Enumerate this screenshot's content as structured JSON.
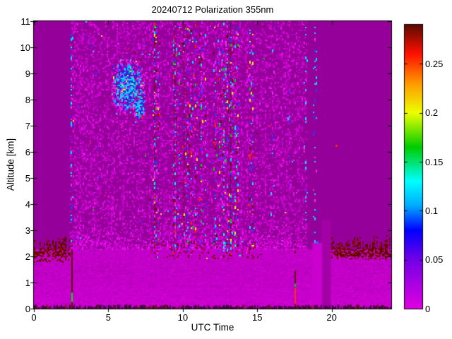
{
  "figure": {
    "title": "20240712 Polarization 355nm",
    "background_color": "#ffffff"
  },
  "chart_data": {
    "type": "heatmap",
    "title": "20240712 Polarization 355nm",
    "xlabel": "UTC Time",
    "ylabel": "Altitude [km]",
    "xlim": [
      0,
      24
    ],
    "ylim": [
      0,
      11
    ],
    "xticks": [
      0,
      5,
      10,
      15,
      20
    ],
    "yticks": [
      0,
      1,
      2,
      3,
      4,
      5,
      6,
      7,
      8,
      9,
      10,
      11
    ],
    "grid": false,
    "legend": "none",
    "colorbar": {
      "position": "right",
      "vmin": 0,
      "vmax": 0.29,
      "ticks": [
        0,
        0.05,
        0.1,
        0.15,
        0.2,
        0.25
      ],
      "colormap_stops": [
        [
          0,
          "#e000e0"
        ],
        [
          0.05,
          "#7300e6"
        ],
        [
          0.08,
          "#0000ff"
        ],
        [
          0.105,
          "#00aaff"
        ],
        [
          0.13,
          "#00ffff"
        ],
        [
          0.165,
          "#00cc00"
        ],
        [
          0.2,
          "#eeff00"
        ],
        [
          0.23,
          "#ff9900"
        ],
        [
          0.26,
          "#ff1100"
        ],
        [
          0.29,
          "#5c0a00"
        ]
      ]
    },
    "render_seed": 12,
    "features": {
      "background": {
        "value": 0.01,
        "color": "#95009a"
      },
      "boundary_layer_band": {
        "utc": [
          0,
          24
        ],
        "alt": [
          0,
          2.27
        ],
        "value": 0.004,
        "color": "#c300c7",
        "bottom_glow_color": "#e000e4"
      },
      "surface_strip": {
        "alt": [
          0,
          0.14
        ],
        "palette": [
          [
            "#500050",
            3
          ],
          [
            "#3c003c",
            2
          ],
          [
            "#6b1030",
            1
          ],
          [
            "#702010",
            0.6
          ],
          [
            "#aa00aa",
            1.5
          ]
        ]
      },
      "noise_field": {
        "utc": [
          2.42,
          18.35
        ],
        "alt": [
          2.27,
          11
        ],
        "density": 0.23,
        "palette": [
          [
            "#c400c8",
            3
          ],
          [
            "#d800dc",
            2
          ],
          [
            "#ea10ee",
            1
          ]
        ],
        "colored_fraction": 0.004
      },
      "band_top_fade": {
        "utc": [
          2.45,
          18.35
        ],
        "alt": [
          2.27,
          3.6
        ],
        "max_density": 0.5,
        "palette": [
          [
            "#d400d8",
            2
          ],
          [
            "#e600ea",
            2
          ],
          [
            "#f020f4",
            1
          ]
        ]
      },
      "depol_fringe_left": {
        "utc": [
          0,
          2.45
        ],
        "alt": [
          1.8,
          2.72
        ],
        "value": 0.29,
        "palette": [
          [
            "#5f0000",
            3
          ],
          [
            "#7a0e00",
            2
          ],
          [
            "#8b1500",
            1
          ]
        ]
      },
      "depol_fringe_right": {
        "utc": [
          19.95,
          24
        ],
        "alt": [
          1.9,
          2.78
        ],
        "value": 0.29
      },
      "depol_fringe_mid": {
        "utc": [
          7.8,
          15.2
        ],
        "alt": [
          1.92,
          2.6
        ],
        "density": 0.1,
        "value": 0.29
      },
      "cloud_blob": {
        "utc": [
          5.2,
          7.45
        ],
        "alt": [
          7.35,
          9.55
        ],
        "center_utc": 6.25,
        "center_alt": 8.55,
        "value_range": [
          0.05,
          0.12
        ],
        "palette": [
          [
            "#1a30e8",
            3
          ],
          [
            "#00aaff",
            2.5
          ],
          [
            "#00e8ff",
            2
          ],
          [
            "#e830ec",
            1.5
          ],
          [
            "#5500dd",
            1
          ],
          [
            "#00ffc8",
            0.5
          ],
          [
            "#ffee00",
            0.2
          ],
          [
            "#ff2200",
            0.2
          ]
        ]
      },
      "column_palettes": {
        "multi": [
          [
            "#e830ec",
            3
          ],
          [
            "#2040ff",
            2
          ],
          [
            "#00e0ff",
            1.5
          ],
          [
            "#6b0000",
            1.2
          ],
          [
            "#ff2200",
            0.8
          ],
          [
            "#ffee00",
            0.7
          ],
          [
            "#00cc00",
            0.5
          ],
          [
            "#00ffc8",
            0.3
          ]
        ],
        "blue": [
          [
            "#2040ff",
            3.5
          ],
          [
            "#00e0ff",
            3
          ],
          [
            "#e830ec",
            2
          ],
          [
            "#00ffc8",
            1
          ],
          [
            "#00cc00",
            0.5
          ]
        ],
        "cyan": [
          [
            "#00e0ff",
            6
          ],
          [
            "#2040ff",
            2
          ],
          [
            "#e830ec",
            2
          ]
        ]
      },
      "noise_columns": [
        {
          "t": 2.47,
          "a0": 2.55,
          "a1": 10.95,
          "p": 0.32,
          "pal": "blue"
        },
        {
          "t": 8.05,
          "a0": 2.3,
          "a1": 10.95,
          "p": 0.5,
          "pal": "multi",
          "dark": true
        },
        {
          "t": 8.3,
          "a0": 2.4,
          "a1": 10.9,
          "p": 0.25,
          "pal": "multi"
        },
        {
          "t": 9.45,
          "a0": 2.1,
          "a1": 10.95,
          "p": 0.45,
          "pal": "multi",
          "dark": true
        },
        {
          "t": 9.7,
          "a0": 2.2,
          "a1": 10.9,
          "p": 0.28,
          "pal": "multi"
        },
        {
          "t": 10.05,
          "a0": 2.3,
          "a1": 10.9,
          "p": 0.2,
          "pal": "multi",
          "dark": true
        },
        {
          "t": 10.3,
          "a0": 2.2,
          "a1": 10.9,
          "p": 0.32,
          "pal": "multi"
        },
        {
          "t": 10.55,
          "a0": 2.3,
          "a1": 10.9,
          "p": 0.28,
          "pal": "multi"
        },
        {
          "t": 10.8,
          "a0": 2.3,
          "a1": 10.9,
          "p": 0.22,
          "pal": "multi"
        },
        {
          "t": 11.2,
          "a0": 2.4,
          "a1": 10.9,
          "p": 0.28,
          "pal": "multi"
        },
        {
          "t": 11.5,
          "a0": 2.5,
          "a1": 10.9,
          "p": 0.18,
          "pal": "multi"
        },
        {
          "t": 12.15,
          "a0": 2.3,
          "a1": 10.9,
          "p": 0.28,
          "pal": "multi"
        },
        {
          "t": 12.45,
          "a0": 2.3,
          "a1": 10.9,
          "p": 0.22,
          "pal": "multi"
        },
        {
          "t": 12.7,
          "a0": 2.2,
          "a1": 10.95,
          "p": 0.42,
          "pal": "multi"
        },
        {
          "t": 12.95,
          "a0": 2.2,
          "a1": 10.95,
          "p": 0.38,
          "pal": "multi"
        },
        {
          "t": 13.2,
          "a0": 2.2,
          "a1": 10.95,
          "p": 0.34,
          "pal": "multi",
          "dark": true
        },
        {
          "t": 13.45,
          "a0": 2.3,
          "a1": 10.9,
          "p": 0.28,
          "pal": "multi"
        },
        {
          "t": 13.65,
          "a0": 2.4,
          "a1": 10.9,
          "p": 0.22,
          "pal": "multi"
        },
        {
          "t": 14.45,
          "a0": 2.2,
          "a1": 10.9,
          "p": 0.32,
          "pal": "multi"
        },
        {
          "t": 14.65,
          "a0": 2.4,
          "a1": 10.9,
          "p": 0.18,
          "pal": "multi"
        },
        {
          "t": 16.0,
          "a0": 2.6,
          "a1": 10.9,
          "p": 0.1,
          "pal": "cyan"
        },
        {
          "t": 17.1,
          "a0": 2.6,
          "a1": 10.9,
          "p": 0.08,
          "pal": "cyan"
        },
        {
          "t": 18.2,
          "a0": 2.5,
          "a1": 10.9,
          "p": 0.14,
          "pal": "cyan"
        },
        {
          "t": 18.82,
          "a0": 2.55,
          "a1": 10.9,
          "p": 0.26,
          "pal": "cyan"
        }
      ],
      "calibration_lines": [
        {
          "utc": 2.53,
          "segments": [
            {
              "alt": [
                0,
                2.08
              ],
              "color": "#5f0000"
            },
            {
              "alt": [
                0.25,
                0.62
              ],
              "color": "#00dd00"
            },
            {
              "alt": [
                1.95,
                2.2
              ],
              "color": "#7a0e00"
            }
          ]
        },
        {
          "utc": 17.5,
          "segments": [
            {
              "alt": [
                0.05,
                1.45
              ],
              "color": "#5f0000"
            },
            {
              "alt": [
                0.18,
                0.8
              ],
              "color": "#ff3300"
            },
            {
              "alt": [
                0.82,
                0.96
              ],
              "color": "#00cc00"
            }
          ]
        }
      ],
      "bright_column": {
        "utc": [
          18.7,
          19.35
        ],
        "alt": [
          0,
          2.52
        ],
        "color": "#cb00cf"
      },
      "band_gap": {
        "utc": [
          19.35,
          19.95
        ],
        "alt": [
          0,
          3.4
        ],
        "color": "#a300a6"
      },
      "isolated_dots": [
        {
          "utc": 20.3,
          "alt": 6.25,
          "color": "#ff2200"
        },
        {
          "utc": 19.0,
          "alt": 2.55,
          "color": "#3366ff"
        }
      ]
    }
  }
}
